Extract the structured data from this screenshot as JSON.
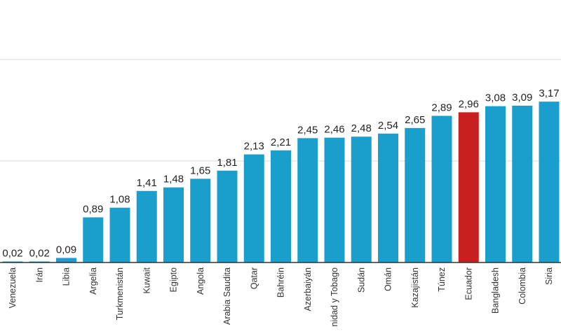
{
  "chart_data": {
    "type": "bar",
    "title": "",
    "xlabel": "",
    "ylabel": "",
    "ylim": [
      0,
      4
    ],
    "gridlines": [
      0,
      2,
      4
    ],
    "grid": true,
    "categories": [
      "Venezuela",
      "Irán",
      "Libia",
      "Argelia",
      "Turkmenistán",
      "Kuwait",
      "Egipto",
      "Angola",
      "Arabia Saudita",
      "Qatar",
      "Bahréin",
      "Azerbaiyán",
      "nidad y Tobago",
      "Sudán",
      "Omán",
      "Kazajistán",
      "Túnez",
      "Ecuador",
      "Bangladesh",
      "Colombia",
      "Siria"
    ],
    "values": [
      0.02,
      0.02,
      0.09,
      0.89,
      1.08,
      1.41,
      1.48,
      1.65,
      1.81,
      2.13,
      2.21,
      2.45,
      2.46,
      2.48,
      2.54,
      2.65,
      2.89,
      2.96,
      3.08,
      3.09,
      3.17
    ],
    "value_labels": [
      "0,02",
      "0,02",
      "0,09",
      "0,89",
      "1,08",
      "1,41",
      "1,48",
      "1,65",
      "1,81",
      "2,13",
      "2,21",
      "2,45",
      "2,46",
      "2,48",
      "2,54",
      "2,65",
      "2,89",
      "2,96",
      "3,08",
      "3,09",
      "3,17"
    ],
    "highlight": "Ecuador",
    "colors": {
      "bar": "#1a9fcc",
      "highlight": "#c8201f",
      "grid": "#e6e6e6",
      "axis": "#333333"
    }
  }
}
